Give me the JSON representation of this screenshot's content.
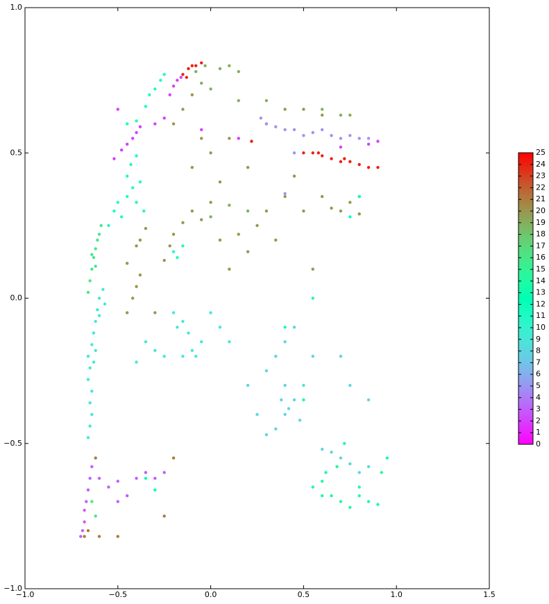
{
  "chart_data": {
    "type": "scatter",
    "colormap": "rainbow",
    "clim": [
      0,
      25
    ],
    "xlim": [
      -1,
      1.5
    ],
    "ylim": [
      -1,
      1
    ],
    "xticks": [
      {
        "value": -1,
        "label": "−1.0"
      },
      {
        "value": -0.5,
        "label": "−0.5"
      },
      {
        "value": 0,
        "label": "0.0"
      },
      {
        "value": 0.5,
        "label": "0.5"
      },
      {
        "value": 1,
        "label": "1.0"
      },
      {
        "value": 1.5,
        "label": "1.5"
      }
    ],
    "yticks": [
      {
        "value": -1,
        "label": "−1.0"
      },
      {
        "value": -0.5,
        "label": "−0.5"
      },
      {
        "value": 0,
        "label": "0.0"
      },
      {
        "value": 0.5,
        "label": "0.5"
      },
      {
        "value": 1,
        "label": "1.0"
      }
    ],
    "cticks": [
      0,
      1,
      2,
      3,
      4,
      5,
      6,
      7,
      8,
      9,
      10,
      11,
      12,
      13,
      14,
      15,
      16,
      17,
      18,
      19,
      20,
      21,
      22,
      23,
      24,
      25
    ],
    "series": [
      {
        "c": 9,
        "x": [
          -0.66,
          -0.65,
          -0.64,
          -0.65,
          -0.64,
          -0.66,
          -0.65,
          -0.66,
          -0.64,
          -0.63,
          -0.62,
          -0.61,
          -0.6,
          -0.58,
          -0.63,
          -0.62,
          -0.6,
          -0.57,
          -0.2,
          -0.18,
          -0.15,
          -0.12,
          -0.1,
          -0.15,
          -0.25,
          -0.3,
          -0.35,
          -0.05,
          0.0,
          0.05,
          0.1,
          -0.4,
          -0.08
        ],
        "values": [
          -0.48,
          -0.44,
          -0.4,
          -0.36,
          -0.32,
          -0.28,
          -0.24,
          -0.2,
          -0.16,
          -0.12,
          -0.08,
          -0.04,
          0.0,
          0.03,
          -0.22,
          -0.18,
          -0.06,
          -0.02,
          -0.05,
          -0.1,
          -0.08,
          -0.12,
          -0.18,
          -0.2,
          -0.2,
          -0.18,
          -0.15,
          -0.15,
          -0.05,
          -0.1,
          -0.15,
          -0.22,
          -0.2
        ]
      },
      {
        "c": 16,
        "x": [
          -0.66,
          -0.65,
          -0.64,
          -0.63,
          -0.62,
          -0.61,
          -0.6,
          -0.59,
          -0.62,
          -0.64,
          -0.64,
          -0.62
        ],
        "values": [
          0.02,
          0.06,
          0.1,
          0.14,
          0.17,
          0.2,
          0.22,
          0.25,
          0.11,
          0.15,
          -0.7,
          -0.75
        ]
      },
      {
        "c": 11,
        "x": [
          -0.55,
          -0.52,
          -0.5,
          -0.48,
          -0.45,
          -0.42,
          -0.4,
          -0.45,
          -0.43,
          -0.4,
          -0.38,
          -0.36,
          -0.35,
          -0.33,
          -0.3,
          -0.27,
          -0.25,
          -0.45,
          -0.4,
          -0.2,
          -0.15,
          -0.18
        ],
        "values": [
          0.25,
          0.3,
          0.33,
          0.28,
          0.35,
          0.38,
          0.33,
          0.42,
          0.46,
          0.49,
          0.4,
          0.3,
          0.66,
          0.7,
          0.72,
          0.75,
          0.77,
          0.6,
          0.61,
          0.16,
          0.18,
          0.14
        ]
      },
      {
        "c": 2,
        "x": [
          -0.48,
          -0.45,
          -0.42,
          -0.4,
          -0.38,
          -0.3,
          -0.22,
          -0.2,
          -0.18,
          -0.16,
          -0.25,
          -0.52,
          -0.5,
          -0.05,
          0.15,
          0.85,
          0.9,
          0.7
        ],
        "values": [
          0.51,
          0.53,
          0.55,
          0.57,
          0.59,
          0.6,
          0.7,
          0.73,
          0.75,
          0.76,
          0.62,
          0.48,
          0.65,
          0.58,
          0.55,
          0.53,
          0.54,
          0.52
        ]
      },
      {
        "c": 24,
        "x": [
          0.5,
          0.55,
          0.6,
          0.65,
          0.7,
          0.75,
          0.8,
          0.85,
          0.9,
          0.72,
          0.58,
          -0.15,
          -0.12,
          -0.1,
          -0.08,
          -0.05,
          -0.13,
          0.22
        ],
        "values": [
          0.5,
          0.5,
          0.49,
          0.48,
          0.47,
          0.47,
          0.46,
          0.45,
          0.45,
          0.48,
          0.5,
          0.77,
          0.79,
          0.8,
          0.8,
          0.81,
          0.76,
          0.54
        ]
      },
      {
        "c": 20,
        "x": [
          -0.45,
          -0.4,
          -0.38,
          -0.35,
          -0.45,
          -0.42,
          -0.4,
          -0.38,
          -0.25,
          -0.22,
          -0.2,
          -0.15,
          -0.1,
          -0.05,
          0.0,
          0.05,
          0.1,
          0.15,
          0.2,
          0.25,
          0.3,
          0.35,
          0.4,
          0.45,
          0.5,
          0.55,
          0.6,
          0.65,
          0.7,
          0.75,
          0.8,
          0.8,
          -0.1,
          0.0,
          0.1,
          -0.05,
          0.2,
          0.3,
          0.4,
          0.5,
          0.6,
          -0.2,
          -0.15,
          -0.1,
          0.05,
          -0.3
        ],
        "values": [
          0.12,
          0.18,
          0.2,
          0.24,
          -0.05,
          0.0,
          0.04,
          0.08,
          0.13,
          0.18,
          0.22,
          0.26,
          0.3,
          0.27,
          0.33,
          0.2,
          0.1,
          0.22,
          0.16,
          0.25,
          0.3,
          0.2,
          0.35,
          0.42,
          0.3,
          0.1,
          0.35,
          0.31,
          0.3,
          0.33,
          0.29,
          0.35,
          0.45,
          0.5,
          0.55,
          0.55,
          0.45,
          0.6,
          0.65,
          0.65,
          0.63,
          0.6,
          0.65,
          0.7,
          0.4,
          -0.05
        ]
      },
      {
        "c": 19,
        "x": [
          -0.08,
          -0.03,
          0.05,
          0.1,
          0.15,
          -0.05,
          0.0,
          0.15,
          0.3,
          0.6,
          0.7,
          0.75,
          0.2,
          0.1,
          0.0
        ],
        "values": [
          0.78,
          0.8,
          0.79,
          0.8,
          0.78,
          0.74,
          0.72,
          0.68,
          0.68,
          0.65,
          0.63,
          0.63,
          0.3,
          0.32,
          0.28
        ]
      },
      {
        "c": 5,
        "x": [
          0.27,
          0.3,
          0.35,
          0.4,
          0.45,
          0.5,
          0.55,
          0.6,
          0.65,
          0.7,
          0.75,
          0.8,
          0.85,
          0.4,
          0.45
        ],
        "values": [
          0.62,
          0.6,
          0.59,
          0.58,
          0.58,
          0.56,
          0.57,
          0.58,
          0.56,
          0.55,
          0.56,
          0.55,
          0.55,
          0.36,
          0.5
        ]
      },
      {
        "c": 8,
        "x": [
          0.3,
          0.35,
          0.4,
          0.45,
          0.4,
          0.38,
          0.4,
          0.42,
          0.45,
          0.48,
          0.35,
          0.3,
          0.5,
          0.55,
          0.7,
          0.75,
          0.85,
          0.65,
          0.7,
          0.75,
          0.8,
          0.85,
          0.6,
          0.2,
          0.25
        ],
        "values": [
          -0.25,
          -0.2,
          -0.15,
          -0.1,
          -0.3,
          -0.35,
          -0.4,
          -0.38,
          -0.35,
          -0.42,
          -0.45,
          -0.47,
          -0.3,
          -0.2,
          -0.2,
          -0.3,
          -0.35,
          -0.53,
          -0.55,
          -0.57,
          -0.6,
          -0.58,
          -0.52,
          -0.3,
          -0.4
        ]
      },
      {
        "c": 14,
        "x": [
          0.55,
          0.6,
          0.62,
          0.65,
          0.7,
          0.75,
          0.8,
          0.85,
          0.9,
          0.92,
          0.95,
          0.72,
          0.8,
          0.6,
          0.68,
          0.5,
          0.4,
          0.55
        ],
        "values": [
          -0.65,
          -0.63,
          -0.6,
          -0.68,
          -0.7,
          -0.72,
          -0.68,
          -0.7,
          -0.71,
          -0.6,
          -0.55,
          -0.5,
          -0.65,
          -0.68,
          -0.58,
          -0.35,
          -0.1,
          0.0
        ]
      },
      {
        "c": 3,
        "x": [
          -0.7,
          -0.69,
          -0.68,
          -0.68,
          -0.67,
          -0.66,
          -0.65,
          -0.64,
          -0.6,
          -0.55,
          -0.5,
          -0.45,
          -0.4,
          -0.35,
          -0.3,
          -0.25,
          -0.5
        ],
        "values": [
          -0.82,
          -0.8,
          -0.77,
          -0.73,
          -0.7,
          -0.66,
          -0.62,
          -0.58,
          -0.62,
          -0.65,
          -0.7,
          -0.68,
          -0.62,
          -0.6,
          -0.62,
          -0.6,
          -0.63
        ]
      },
      {
        "c": 21,
        "x": [
          -0.68,
          -0.66,
          -0.6,
          -0.5,
          -0.25,
          -0.2,
          -0.62
        ],
        "values": [
          -0.82,
          -0.8,
          -0.82,
          -0.82,
          -0.75,
          -0.55,
          -0.55
        ]
      },
      {
        "c": 12,
        "x": [
          -0.35,
          -0.3,
          0.8,
          0.75
        ],
        "values": [
          -0.62,
          -0.66,
          0.35,
          0.28
        ]
      }
    ]
  }
}
